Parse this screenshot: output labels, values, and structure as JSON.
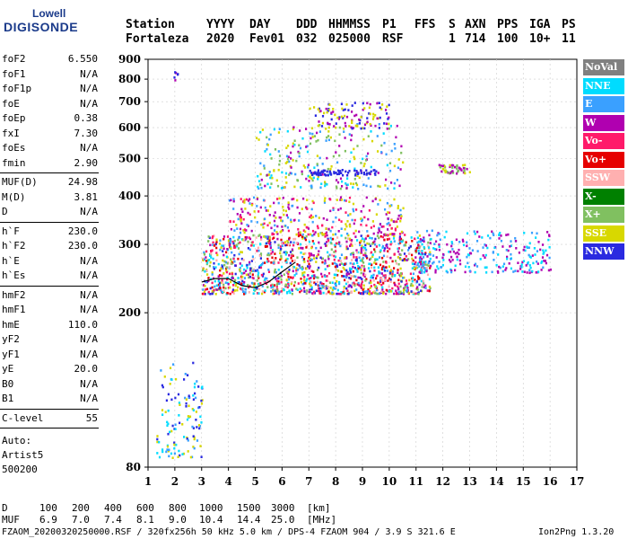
{
  "logo": {
    "top": "Lowell",
    "main": "DIGISONDE"
  },
  "header": {
    "row1": [
      "Station",
      "YYYY",
      "DAY",
      "DDD",
      "HHMMSS",
      "P1",
      "FFS",
      "S",
      "AXN",
      "PPS",
      "IGA",
      "PS"
    ],
    "row2": [
      "Fortaleza",
      "2020",
      "Fev01",
      "032",
      "025000",
      "RSF",
      "",
      "1",
      "714",
      "100",
      "10+",
      "11"
    ]
  },
  "params": {
    "group1": [
      {
        "k": "foF2",
        "v": "6.550"
      },
      {
        "k": "foF1",
        "v": "N/A"
      },
      {
        "k": "foF1p",
        "v": "N/A"
      },
      {
        "k": "foE",
        "v": "N/A"
      },
      {
        "k": "foEp",
        "v": "0.38"
      },
      {
        "k": "fxI",
        "v": "7.30"
      },
      {
        "k": "foEs",
        "v": "N/A"
      },
      {
        "k": "fmin",
        "v": "2.90"
      }
    ],
    "group2": [
      {
        "k": "MUF(D)",
        "v": "24.98"
      },
      {
        "k": "M(D)",
        "v": "3.81"
      },
      {
        "k": "D",
        "v": "N/A"
      }
    ],
    "group3": [
      {
        "k": "h`F",
        "v": "230.0"
      },
      {
        "k": "h`F2",
        "v": "230.0"
      },
      {
        "k": "h`E",
        "v": "N/A"
      },
      {
        "k": "h`Es",
        "v": "N/A"
      }
    ],
    "group4": [
      {
        "k": "hmF2",
        "v": "N/A"
      },
      {
        "k": "hmF1",
        "v": "N/A"
      },
      {
        "k": "hmE",
        "v": "110.0"
      },
      {
        "k": "yF2",
        "v": "N/A"
      },
      {
        "k": "yF1",
        "v": "N/A"
      },
      {
        "k": "yE",
        "v": "20.0"
      },
      {
        "k": "B0",
        "v": "N/A"
      },
      {
        "k": "B1",
        "v": "N/A"
      }
    ],
    "clevel": {
      "k": "C-level",
      "v": "55"
    },
    "auto": [
      "Auto:",
      "Artist5",
      "500200"
    ]
  },
  "legend": [
    {
      "label": "NoVal",
      "color": "#808080"
    },
    {
      "label": "NNE",
      "color": "#00dcff"
    },
    {
      "label": "E",
      "color": "#3aa0ff"
    },
    {
      "label": "W",
      "color": "#b000b0"
    },
    {
      "label": "Vo-",
      "color": "#ff1a6a"
    },
    {
      "label": "Vo+",
      "color": "#e60000"
    },
    {
      "label": "SSW",
      "color": "#ffb0b0"
    },
    {
      "label": "X-",
      "color": "#008000"
    },
    {
      "label": "X+",
      "color": "#80c060"
    },
    {
      "label": "SSE",
      "color": "#d8d800"
    },
    {
      "label": "NNW",
      "color": "#2a2ae0"
    }
  ],
  "chart_data": {
    "type": "scatter",
    "xlabel": "",
    "ylabel": "",
    "xlim": [
      1,
      17
    ],
    "ylim": [
      80,
      900
    ],
    "y_scale": "log",
    "x_ticks": [
      1,
      2,
      3,
      4,
      5,
      6,
      7,
      8,
      9,
      10,
      11,
      12,
      13,
      14,
      15,
      16,
      17
    ],
    "y_ticks": [
      80,
      200,
      300,
      400,
      500,
      600,
      700,
      800,
      900
    ],
    "trace": {
      "name": "",
      "color": "#000000",
      "x": [
        3.0,
        3.5,
        4.0,
        4.5,
        5.0,
        5.5,
        6.0,
        6.5
      ],
      "y": [
        240,
        245,
        245,
        235,
        232,
        240,
        255,
        270
      ]
    },
    "clusters": [
      {
        "name": "low-E",
        "x": [
          1.3,
          3.0
        ],
        "y": [
          85,
          150
        ],
        "colors": [
          "#3aa0ff",
          "#2a2ae0",
          "#d8d800",
          "#00dcff"
        ]
      },
      {
        "name": "F-main",
        "x": [
          3.0,
          11.5
        ],
        "y": [
          225,
          320
        ],
        "colors": [
          "#e60000",
          "#ff1a6a",
          "#d8d800",
          "#3aa0ff",
          "#2a2ae0",
          "#b000b0",
          "#ffb0b0",
          "#80c060",
          "#00dcff"
        ]
      },
      {
        "name": "F-tail",
        "x": [
          11.0,
          16.0
        ],
        "y": [
          255,
          330
        ],
        "colors": [
          "#00dcff",
          "#3aa0ff",
          "#b000b0"
        ]
      },
      {
        "name": "F-spread",
        "x": [
          4.0,
          10.5
        ],
        "y": [
          320,
          400
        ],
        "colors": [
          "#b000b0",
          "#ff1a6a",
          "#3aa0ff",
          "#d8d800"
        ]
      },
      {
        "name": "multi-500",
        "x": [
          5.0,
          10.5
        ],
        "y": [
          420,
          620
        ],
        "colors": [
          "#80c060",
          "#d8d800",
          "#00dcff",
          "#3aa0ff",
          "#b000b0"
        ]
      },
      {
        "name": "band-460",
        "x": [
          7.0,
          9.5
        ],
        "y": [
          455,
          470
        ],
        "colors": [
          "#2a2ae0"
        ]
      },
      {
        "name": "band-470",
        "x": [
          11.8,
          13.0
        ],
        "y": [
          460,
          485
        ],
        "colors": [
          "#d8d800",
          "#b000b0",
          "#80c060"
        ]
      },
      {
        "name": "high-650",
        "x": [
          7.0,
          10.0
        ],
        "y": [
          600,
          700
        ],
        "colors": [
          "#b000b0",
          "#2a2ae0",
          "#d8d800"
        ]
      },
      {
        "name": "spike-800",
        "x": [
          1.9,
          2.1
        ],
        "y": [
          790,
          840
        ],
        "colors": [
          "#b000b0",
          "#2a2ae0"
        ]
      }
    ]
  },
  "footer": {
    "d_label": "D",
    "d_values": [
      "100",
      "200",
      "400",
      "600",
      "800",
      "1000",
      "1500",
      "3000",
      "[km]"
    ],
    "muf_label": "MUF",
    "muf_values": [
      "6.9",
      "7.0",
      "7.4",
      "8.1",
      "9.0",
      "10.4",
      "14.4",
      "25.0",
      "[MHz]"
    ],
    "fileline": "FZAOM_20200320250000.RSF / 320fx256h 50 kHz 5.0 km / DPS-4 FZAOM 904 / 3.9 S 321.6 E",
    "version": "Ion2Png 1.3.20"
  }
}
